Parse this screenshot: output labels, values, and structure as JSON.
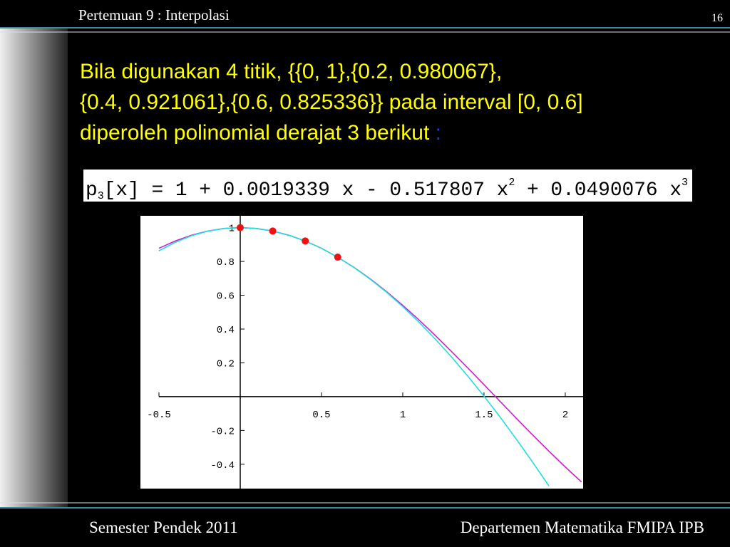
{
  "header": {
    "title": "Pertemuan 9 : Interpolasi",
    "page": "16"
  },
  "body": {
    "lines": [
      "Bila digunakan 4 titik, {{0, 1},{0.2, 0.980067},",
      "{0.4, 0.921061},{0.6, 0.825336}} pada interval [0, 0.6]",
      "diperoleh polinomial derajat 3 berikut"
    ],
    "colon": ":"
  },
  "formula": [
    "p",
    "3",
    "[x]  =  1 + 0.0019339 x - 0.517807 x",
    "2",
    " + 0.0490076 x",
    "3"
  ],
  "chart_data": {
    "type": "line",
    "x": [
      -0.5,
      -0.4,
      -0.3,
      -0.2,
      -0.1,
      0,
      0.1,
      0.2,
      0.3,
      0.4,
      0.5,
      0.6,
      0.7,
      0.8,
      0.9,
      1.0,
      1.1,
      1.2,
      1.3,
      1.4,
      1.5,
      1.6,
      1.7,
      1.8,
      1.9,
      2.0,
      2.1
    ],
    "series": [
      {
        "color": "#cc22cc",
        "style": "line",
        "values": [
          0.878,
          0.921,
          0.955,
          0.98,
          0.995,
          1,
          0.995,
          0.98,
          0.955,
          0.921,
          0.878,
          0.825,
          0.765,
          0.697,
          0.622,
          0.54,
          0.454,
          0.362,
          0.267,
          0.17,
          0.071,
          -0.029,
          -0.129,
          -0.227,
          -0.323,
          -0.416,
          -0.505
        ]
      },
      {
        "color": "#22dddd",
        "style": "line",
        "values": [
          0.863,
          0.913,
          0.952,
          0.979,
          0.995,
          1,
          0.995,
          0.98,
          0.955,
          0.921,
          0.878,
          0.825,
          0.764,
          0.695,
          0.618,
          0.533,
          0.441,
          0.341,
          0.235,
          0.122,
          0.003,
          -0.122,
          -0.253,
          -0.389,
          -0.529,
          null,
          null
        ]
      },
      {
        "color": "#ee1111",
        "style": "points",
        "values": [
          null,
          null,
          null,
          null,
          null,
          1,
          null,
          0.980067,
          null,
          0.921061,
          null,
          0.825336,
          null,
          null,
          null,
          null,
          null,
          null,
          null,
          null,
          null,
          null,
          null,
          null,
          null,
          null,
          null
        ]
      }
    ],
    "xlim": [
      -0.614,
      2.11
    ],
    "ylim": [
      -0.544,
      1.07
    ],
    "xticks": [
      -0.5,
      0.5,
      1,
      1.5,
      2
    ],
    "yticks": [
      -0.4,
      -0.2,
      0.2,
      0.4,
      0.6,
      0.8,
      1
    ]
  },
  "footer": {
    "left": "Semester Pendek 2011",
    "right": "Departemen Matematika FMIPA IPB"
  }
}
